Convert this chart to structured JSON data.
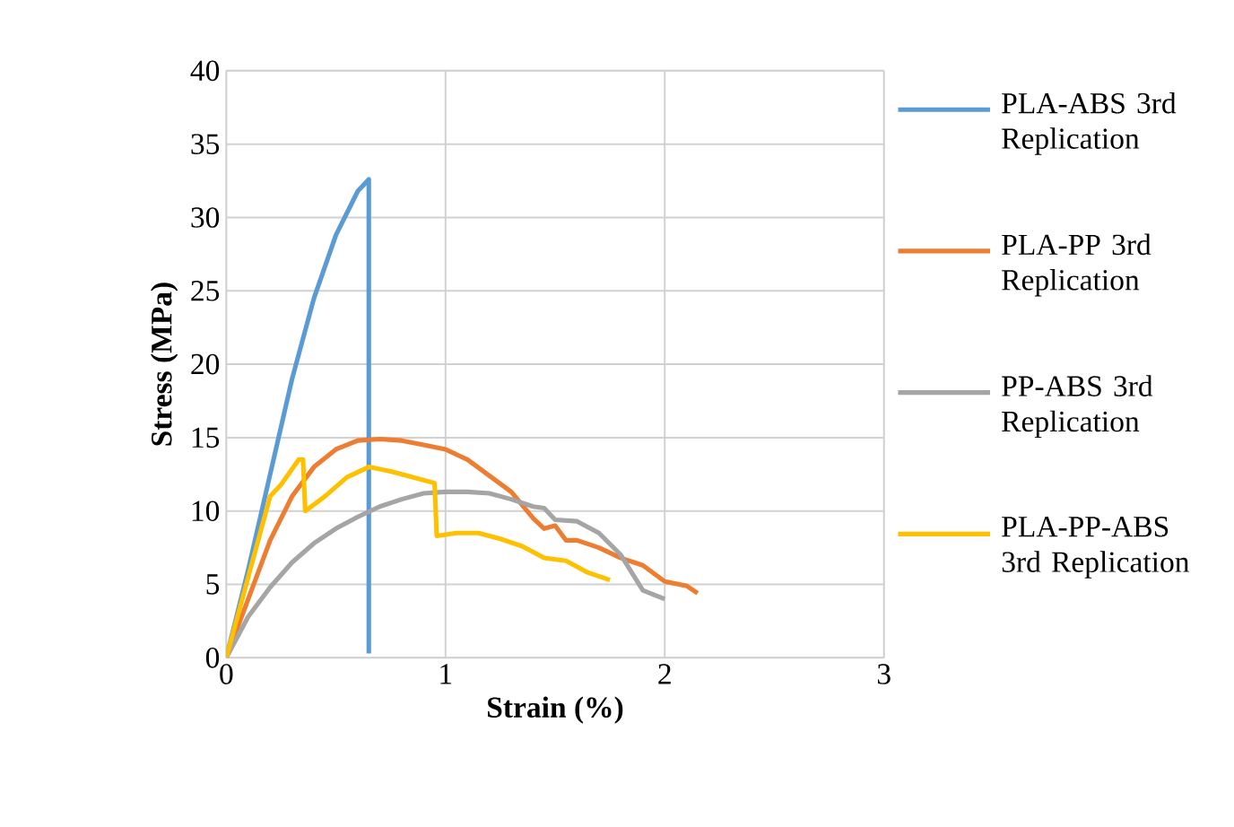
{
  "chart_data": {
    "type": "line",
    "xlabel": "Strain (%)",
    "ylabel": "Stress (MPa)",
    "xlim": [
      0,
      3
    ],
    "ylim": [
      0,
      40
    ],
    "xticks": [
      0,
      1,
      2,
      3
    ],
    "yticks": [
      0,
      5,
      10,
      15,
      20,
      25,
      30,
      35,
      40
    ],
    "grid": true,
    "legend": "right",
    "marker": "none",
    "line_style": "solid",
    "series": [
      {
        "name": "PLA-ABS 3rd Replication",
        "color": "#5b9bd5",
        "x": [
          0,
          0.1,
          0.2,
          0.3,
          0.4,
          0.5,
          0.6,
          0.65,
          0.65
        ],
        "values": [
          0,
          6,
          12.5,
          19,
          24.5,
          28.8,
          31.8,
          32.6,
          0.3
        ]
      },
      {
        "name": "PLA-PP 3rd Replication",
        "color": "#ed7d31",
        "x": [
          0,
          0.1,
          0.2,
          0.3,
          0.4,
          0.5,
          0.6,
          0.7,
          0.8,
          0.9,
          1.0,
          1.1,
          1.2,
          1.3,
          1.4,
          1.45,
          1.5,
          1.55,
          1.6,
          1.7,
          1.8,
          1.9,
          2.0,
          2.1,
          2.15
        ],
        "values": [
          0,
          4,
          8,
          11,
          13,
          14.2,
          14.8,
          14.9,
          14.8,
          14.5,
          14.2,
          13.5,
          12.4,
          11.3,
          9.5,
          8.8,
          9,
          8,
          8,
          7.5,
          6.8,
          6.3,
          5.2,
          4.9,
          4.4
        ]
      },
      {
        "name": "PP-ABS 3rd Replication",
        "color": "#a5a5a5",
        "x": [
          0,
          0.1,
          0.2,
          0.3,
          0.4,
          0.5,
          0.6,
          0.7,
          0.8,
          0.9,
          1.0,
          1.1,
          1.2,
          1.3,
          1.4,
          1.45,
          1.5,
          1.6,
          1.7,
          1.8,
          1.9,
          2.0
        ],
        "values": [
          0,
          2.8,
          4.8,
          6.5,
          7.8,
          8.8,
          9.6,
          10.3,
          10.8,
          11.2,
          11.3,
          11.3,
          11.2,
          10.8,
          10.3,
          10.2,
          9.4,
          9.3,
          8.5,
          7,
          4.6,
          4.0
        ]
      },
      {
        "name": "PLA-PP-ABS 3rd Replication",
        "color": "#ffc000",
        "x": [
          0,
          0.1,
          0.2,
          0.25,
          0.33,
          0.35,
          0.36,
          0.45,
          0.55,
          0.65,
          0.75,
          0.85,
          0.95,
          0.96,
          1.05,
          1.15,
          1.25,
          1.35,
          1.45,
          1.55,
          1.65,
          1.75
        ],
        "values": [
          0,
          5.5,
          11,
          11.8,
          13.5,
          13.5,
          10,
          11,
          12.3,
          13,
          12.7,
          12.3,
          11.9,
          8.3,
          8.5,
          8.5,
          8.1,
          7.6,
          6.8,
          6.6,
          5.8,
          5.3
        ]
      }
    ]
  }
}
